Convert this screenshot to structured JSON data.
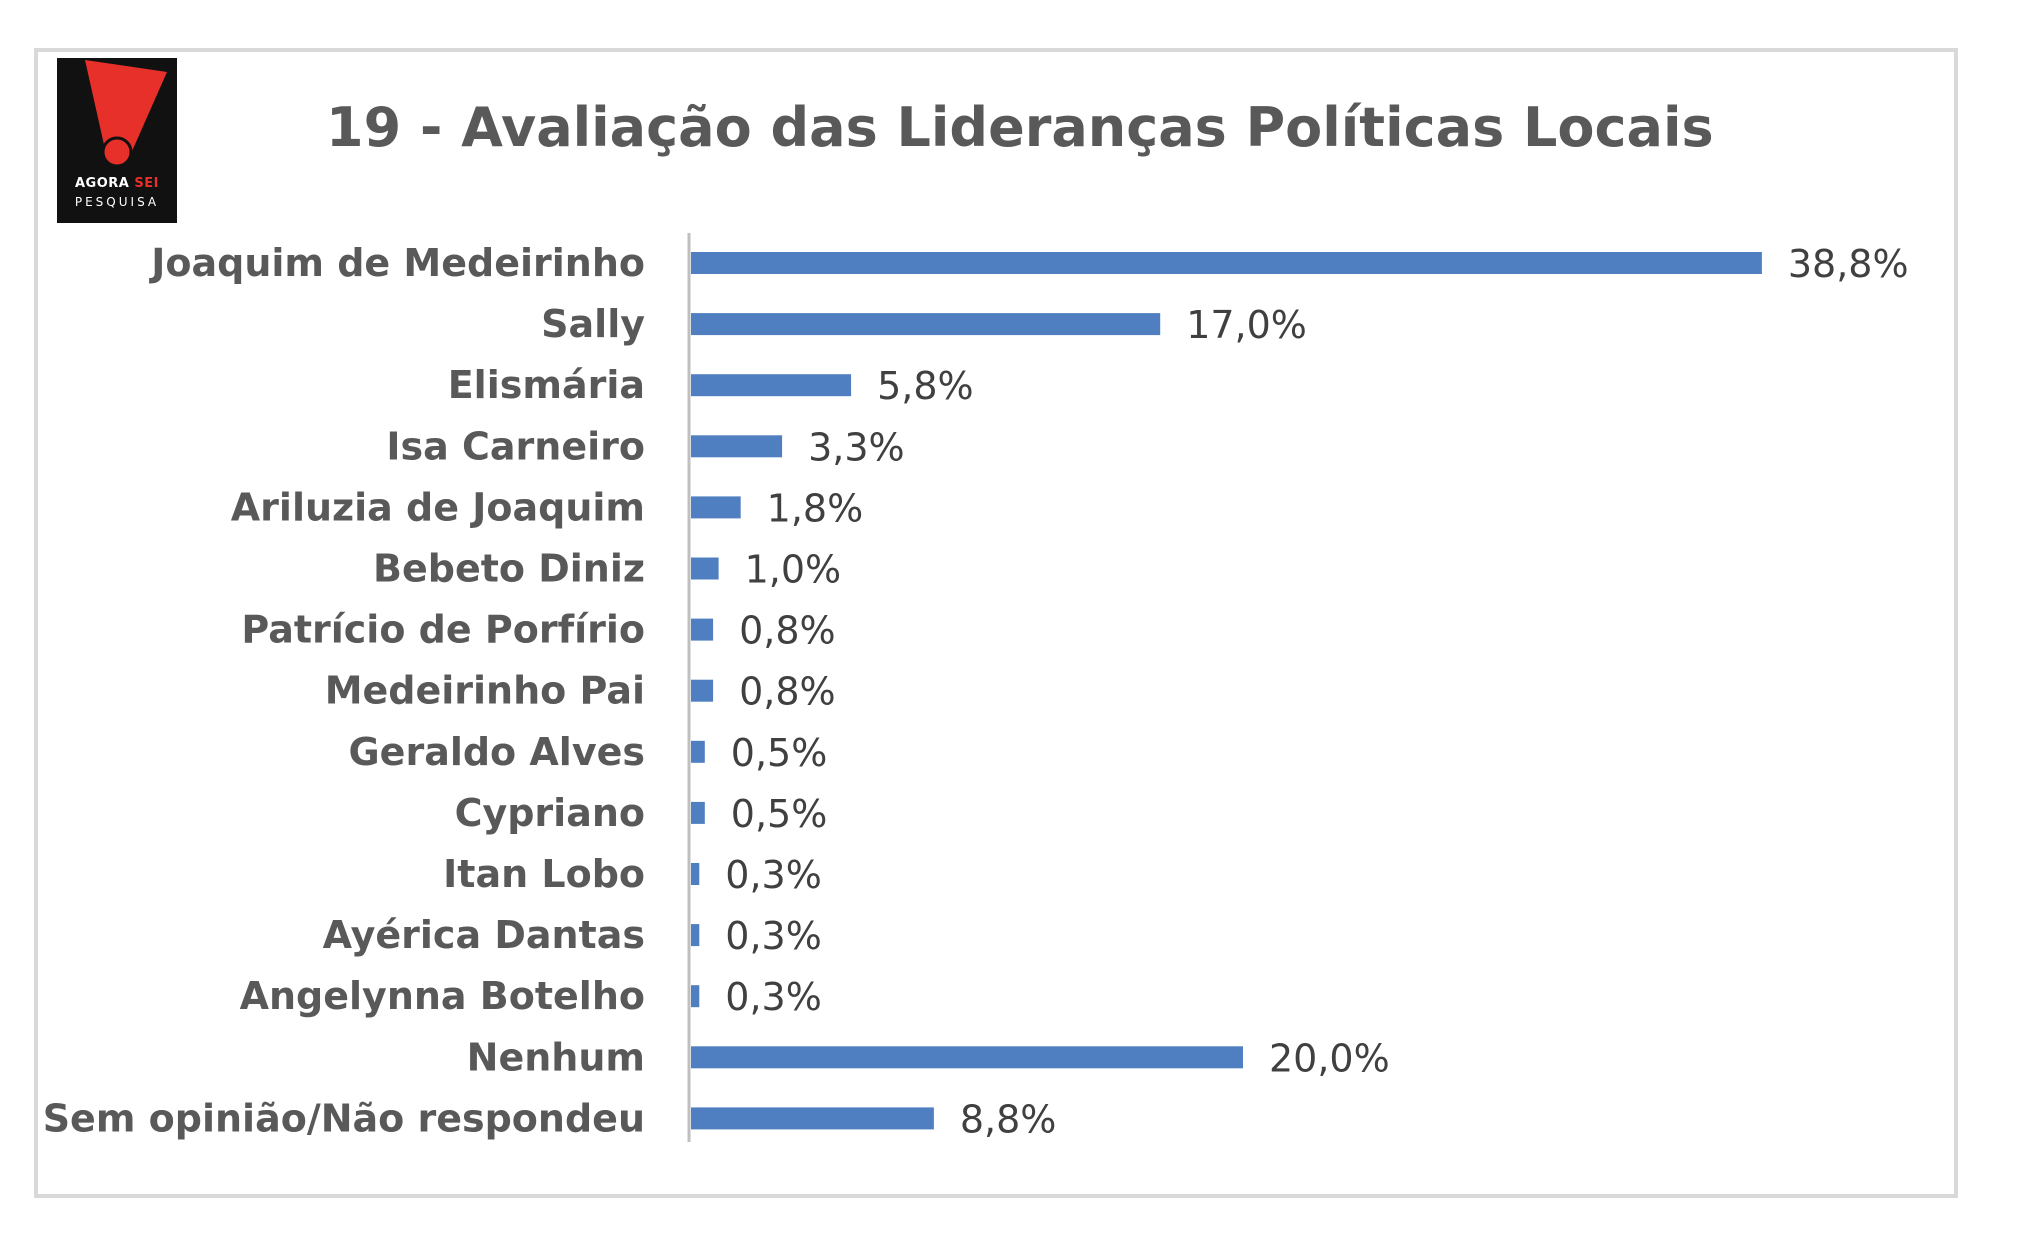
{
  "logo": {
    "line1_a": "AGORA",
    "line1_b": "SEI",
    "line2": "PESQUISA",
    "colors": {
      "background": "#111111",
      "accent": "#e8302a"
    }
  },
  "chart_data": {
    "type": "bar",
    "orientation": "horizontal",
    "title": "19 - Avaliação das Lideranças Políticas Locais",
    "categories": [
      "Joaquim de Medeirinho",
      "Sally",
      "Elismária",
      "Isa Carneiro",
      "Ariluzia de Joaquim",
      "Bebeto Diniz",
      "Patrício de Porfírio",
      "Medeirinho Pai",
      "Geraldo Alves",
      "Cypriano",
      "Itan Lobo",
      "Ayérica Dantas",
      "Angelynna Botelho",
      "Nenhum",
      "Sem opinião/Não respondeu"
    ],
    "values": [
      38.8,
      17.0,
      5.8,
      3.3,
      1.8,
      1.0,
      0.8,
      0.8,
      0.5,
      0.5,
      0.3,
      0.3,
      0.3,
      20.0,
      8.8
    ],
    "data_labels": [
      "38,8%",
      "17,0%",
      "5,8%",
      "3,3%",
      "1,8%",
      "1,0%",
      "0,8%",
      "0,8%",
      "0,5%",
      "0,5%",
      "0,3%",
      "0,3%",
      "0,3%",
      "20,0%",
      "8,8%"
    ],
    "xlim": [
      0,
      45
    ],
    "grid": false,
    "legend": "none",
    "bar_color": "#4f7fc0",
    "axis_color": "#bfbfbf"
  }
}
